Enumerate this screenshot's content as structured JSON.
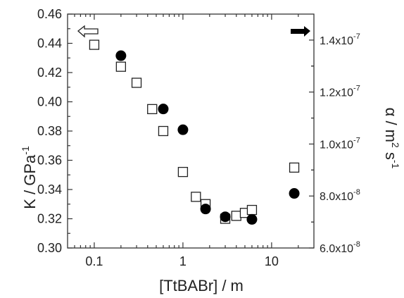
{
  "chart_data": {
    "type": "scatter",
    "x_scale": "log",
    "xlabel": "[TtBABr] / m",
    "xlim": [
      0.05,
      30
    ],
    "x_ticks": [
      {
        "value": 0.1,
        "label": "0.1"
      },
      {
        "value": 1,
        "label": "1"
      },
      {
        "value": 10,
        "label": "10"
      }
    ],
    "left_axis": {
      "label_main": "K / GPa",
      "label_sup": "-1",
      "ylim": [
        0.3,
        0.46
      ],
      "ticks": [
        {
          "value": 0.3,
          "label": "0.30"
        },
        {
          "value": 0.32,
          "label": "0.32"
        },
        {
          "value": 0.34,
          "label": "0.34"
        },
        {
          "value": 0.36,
          "label": "0.36"
        },
        {
          "value": 0.38,
          "label": "0.38"
        },
        {
          "value": 0.4,
          "label": "0.40"
        },
        {
          "value": 0.42,
          "label": "0.42"
        },
        {
          "value": 0.44,
          "label": "0.44"
        },
        {
          "value": 0.46,
          "label": "0.46"
        }
      ]
    },
    "right_axis": {
      "label_alpha": "α",
      "label_rest": " / m",
      "label_sup1": "2",
      "label_mid": " s",
      "label_sup2": "-1",
      "ylim": [
        6e-08,
        1.5e-07
      ],
      "ticks": [
        {
          "value": 6e-08,
          "mant": "6.0x10",
          "exp": "-8"
        },
        {
          "value": 8e-08,
          "mant": "8.0x10",
          "exp": "-8"
        },
        {
          "value": 1e-07,
          "mant": "1.0x10",
          "exp": "-7"
        },
        {
          "value": 1.2e-07,
          "mant": "1.2x10",
          "exp": "-7"
        },
        {
          "value": 1.4e-07,
          "mant": "1.4x10",
          "exp": "-7"
        }
      ]
    },
    "series": [
      {
        "marker": "open-square",
        "axis": "left",
        "color": "#222222",
        "points": [
          {
            "x": 0.1,
            "y": 0.439
          },
          {
            "x": 0.2,
            "y": 0.424
          },
          {
            "x": 0.3,
            "y": 0.413
          },
          {
            "x": 0.45,
            "y": 0.395
          },
          {
            "x": 0.6,
            "y": 0.38
          },
          {
            "x": 1.0,
            "y": 0.352
          },
          {
            "x": 1.4,
            "y": 0.335
          },
          {
            "x": 1.8,
            "y": 0.33
          },
          {
            "x": 3.0,
            "y": 0.32
          },
          {
            "x": 4.0,
            "y": 0.322
          },
          {
            "x": 5.0,
            "y": 0.324
          },
          {
            "x": 6.0,
            "y": 0.326
          },
          {
            "x": 18.0,
            "y": 0.355
          }
        ]
      },
      {
        "marker": "filled-circle",
        "axis": "right",
        "color": "#000000",
        "points": [
          {
            "x": 0.2,
            "y": 1.34e-07
          },
          {
            "x": 0.6,
            "y": 1.135e-07
          },
          {
            "x": 1.0,
            "y": 1.055e-07
          },
          {
            "x": 1.8,
            "y": 7.5e-08
          },
          {
            "x": 3.0,
            "y": 7.2e-08
          },
          {
            "x": 6.0,
            "y": 7.1e-08
          },
          {
            "x": 18.0,
            "y": 8.1e-08
          }
        ]
      }
    ],
    "annotations": [
      {
        "type": "open-arrow",
        "direction": "left",
        "refers_to": "left axis"
      },
      {
        "type": "filled-arrow",
        "direction": "right",
        "refers_to": "right axis"
      }
    ]
  }
}
